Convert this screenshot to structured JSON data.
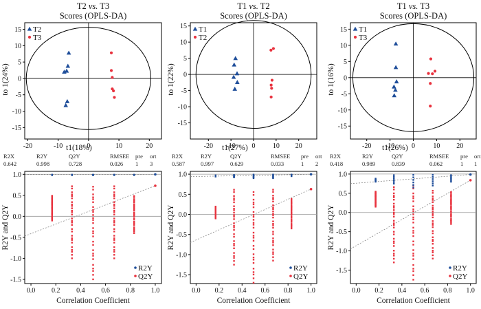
{
  "colors": {
    "group_blue": "#1f4e9a",
    "group_red": "#e8323e",
    "r2y": "#1f4e9a",
    "q2y": "#e8323e",
    "axis": "#000000",
    "refline": "#999999",
    "trend": "#888888"
  },
  "chart_data": [
    {
      "type": "scatter",
      "title_line1": "T2 vs. T3",
      "title_line2": "Scores (OPLS-DA)",
      "xlabel": "t1(18%)",
      "ylabel": "to 1(24%)",
      "xlim": [
        -21,
        24
      ],
      "ylim": [
        -18.5,
        17
      ],
      "xticks": [
        "-20",
        "-10",
        "0",
        "10",
        "20"
      ],
      "yticks": [
        "-15",
        "-10",
        "-5",
        "0",
        "5",
        "10",
        "15"
      ],
      "ellipse": {
        "rx": 20.5,
        "ry": 15.6
      },
      "legend": {
        "placement": "top-left",
        "entries": [
          "T2",
          "T3"
        ]
      },
      "series": [
        {
          "name": "T2",
          "marker": "triangle",
          "color": "#1f4e9a",
          "points": [
            [
              -6.5,
              7.8
            ],
            [
              -6.8,
              3.8
            ],
            [
              -7.2,
              2.3
            ],
            [
              -8.0,
              2.0
            ],
            [
              -7.0,
              -7.0
            ],
            [
              -7.5,
              -8.2
            ]
          ]
        },
        {
          "name": "T3",
          "marker": "circle",
          "color": "#e8323e",
          "points": [
            [
              7.5,
              7.8
            ],
            [
              7.5,
              2.4
            ],
            [
              7.8,
              0.3
            ],
            [
              7.8,
              -3.2
            ],
            [
              8.2,
              -3.8
            ],
            [
              8.5,
              -5.8
            ]
          ]
        }
      ]
    },
    {
      "type": "scatter",
      "title_line1": "T1 vs. T2",
      "title_line2": "Scores (OPLS-DA)",
      "xlabel": "t1(27%)",
      "ylabel": "to 1(22%)",
      "xlim": [
        -28,
        28
      ],
      "ylim": [
        -20,
        16
      ],
      "xticks": [
        "-20",
        "-10",
        "0",
        "10",
        "20"
      ],
      "yticks": [
        "-15",
        "-10",
        "-5",
        "0",
        "5",
        "10",
        "15"
      ],
      "ellipse": {
        "rx": 25.5,
        "ry": 16.7
      },
      "legend": {
        "placement": "top-left",
        "entries": [
          "T1",
          "T2"
        ]
      },
      "series": [
        {
          "name": "T1",
          "marker": "triangle",
          "color": "#1f4e9a",
          "points": [
            [
              -8.0,
              5.0
            ],
            [
              -8.6,
              3.0
            ],
            [
              -7.3,
              0.3
            ],
            [
              -8.8,
              -0.8
            ],
            [
              -7.2,
              -2.4
            ],
            [
              -8.3,
              -4.5
            ]
          ]
        },
        {
          "name": "T2",
          "marker": "circle",
          "color": "#e8323e",
          "points": [
            [
              8.8,
              8.0
            ],
            [
              7.7,
              7.5
            ],
            [
              8.2,
              -1.8
            ],
            [
              7.8,
              -3.3
            ],
            [
              8.0,
              -4.3
            ],
            [
              7.8,
              -7.0
            ]
          ]
        }
      ]
    },
    {
      "type": "scatter",
      "title_line1": "T1 vs. T3",
      "title_line2": "Scores (OPLS-DA)",
      "xlabel": "t1(26%)",
      "ylabel": "to 1(16%)",
      "xlim": [
        -27,
        27
      ],
      "ylim": [
        -19,
        17
      ],
      "xticks": [
        "-20",
        "-10",
        "0",
        "10",
        "20"
      ],
      "yticks": [
        "-15",
        "-10",
        "-5",
        "0",
        "5",
        "10",
        "15"
      ],
      "ellipse": {
        "rx": 26,
        "ry": 16.7
      },
      "legend": {
        "placement": "top-left",
        "entries": [
          "T1",
          "T3"
        ]
      },
      "series": [
        {
          "name": "T1",
          "marker": "triangle",
          "color": "#1f4e9a",
          "points": [
            [
              -7.5,
              10.5
            ],
            [
              -7.5,
              3.2
            ],
            [
              -7.2,
              -1.2
            ],
            [
              -8.3,
              -2.8
            ],
            [
              -7.7,
              -3.8
            ],
            [
              -8.2,
              -5.5
            ]
          ]
        },
        {
          "name": "T3",
          "marker": "circle",
          "color": "#e8323e",
          "points": [
            [
              7.5,
              5.8
            ],
            [
              6.5,
              1.3
            ],
            [
              9.3,
              2.0
            ],
            [
              8.2,
              1.2
            ],
            [
              7.3,
              -1.8
            ],
            [
              7.3,
              -8.8
            ]
          ]
        }
      ]
    },
    {
      "type": "scatter",
      "subtype": "permutation",
      "stats": {
        "labels": [
          "R2X",
          "R2Y",
          "Q2Y",
          "RMSEE",
          "pre",
          "ort"
        ],
        "values": [
          "0.642",
          "0.998",
          "0.728",
          "0.026",
          "1",
          "3"
        ]
      },
      "xlabel": "Correlation Coefficient",
      "ylabel": "R2Y and Q2Y",
      "xlim": [
        -0.05,
        1.05
      ],
      "ylim": [
        -1.6,
        1.07
      ],
      "xticks": [
        "0.0",
        "0.2",
        "0.4",
        "0.6",
        "0.8",
        "1.0"
      ],
      "yticks": [
        "-1.5",
        "-1.0",
        "-0.5",
        "0.0",
        "0.5",
        "1.0"
      ],
      "x_columns": [
        0.17,
        0.33,
        0.5,
        0.67,
        0.83
      ],
      "r2y_range": [
        [
          0.98,
          0.99
        ],
        [
          0.98,
          0.99
        ],
        [
          0.98,
          0.99
        ],
        [
          0.98,
          0.99
        ],
        [
          0.98,
          0.99
        ]
      ],
      "q2y_range": [
        [
          -0.1,
          0.5
        ],
        [
          -1.0,
          0.75
        ],
        [
          -1.5,
          0.75
        ],
        [
          -1.0,
          0.75
        ],
        [
          -0.4,
          0.5
        ]
      ],
      "r2y_original": 0.998,
      "q2y_original": 0.728,
      "r2y_intercept": 0.995,
      "q2y_intercept": -0.47,
      "legend": {
        "placement": "bottom-right",
        "entries": [
          "R2Y",
          "Q2Y"
        ]
      }
    },
    {
      "type": "scatter",
      "subtype": "permutation",
      "stats": {
        "labels": [
          "R2X",
          "R2Y",
          "Q2Y",
          "RMSEE",
          "pre",
          "ort"
        ],
        "values": [
          "0.587",
          "0.997",
          "0.629",
          "0.033",
          "1",
          "2"
        ]
      },
      "xlabel": "Correlation Coefficient",
      "ylabel": "R2Y and Q2Y",
      "xlim": [
        -0.05,
        1.05
      ],
      "ylim": [
        -1.72,
        1.07
      ],
      "xticks": [
        "0.0",
        "0.2",
        "0.4",
        "0.6",
        "0.8",
        "1.0"
      ],
      "yticks": [
        "-1.5",
        "-1.0",
        "-0.5",
        "0.0",
        "0.5",
        "1.0"
      ],
      "x_columns": [
        0.17,
        0.33,
        0.5,
        0.67,
        0.83
      ],
      "r2y_range": [
        [
          0.94,
          0.97
        ],
        [
          0.92,
          0.98
        ],
        [
          0.9,
          0.99
        ],
        [
          0.9,
          0.99
        ],
        [
          0.95,
          0.99
        ]
      ],
      "q2y_range": [
        [
          -0.1,
          0.2
        ],
        [
          -1.25,
          0.65
        ],
        [
          -1.7,
          0.6
        ],
        [
          -1.15,
          0.65
        ],
        [
          -0.35,
          0.4
        ]
      ],
      "r2y_original": 0.997,
      "q2y_original": 0.629,
      "r2y_intercept": 0.94,
      "q2y_intercept": -0.7,
      "legend": {
        "placement": "bottom-right",
        "entries": [
          "R2Y",
          "Q2Y"
        ]
      }
    },
    {
      "type": "scatter",
      "subtype": "permutation",
      "stats": {
        "labels": [
          "R2X",
          "R2Y",
          "Q2Y",
          "RMSEE",
          "pre",
          "ort"
        ],
        "values": [
          "0.418",
          "0.989",
          "0.839",
          "0.062",
          "1",
          "1"
        ]
      },
      "xlabel": "Correlation Coefficient",
      "ylabel": "R2Y and Q2Y",
      "xlim": [
        -0.05,
        1.05
      ],
      "ylim": [
        -1.85,
        1.07
      ],
      "xticks": [
        "0.0",
        "0.2",
        "0.4",
        "0.6",
        "0.8",
        "1.0"
      ],
      "yticks": [
        "-1.5",
        "-1.0",
        "-0.5",
        "0.0",
        "0.5",
        "1.0"
      ],
      "x_columns": [
        0.17,
        0.33,
        0.5,
        0.67,
        0.83
      ],
      "r2y_range": [
        [
          0.8,
          0.88
        ],
        [
          0.75,
          0.97
        ],
        [
          0.65,
          0.98
        ],
        [
          0.7,
          0.98
        ],
        [
          0.8,
          0.97
        ]
      ],
      "q2y_range": [
        [
          0.15,
          0.55
        ],
        [
          -1.3,
          0.7
        ],
        [
          -1.75,
          0.75
        ],
        [
          -1.2,
          0.6
        ],
        [
          -0.3,
          0.55
        ]
      ],
      "r2y_original": 0.989,
      "q2y_original": 0.839,
      "r2y_intercept": 0.75,
      "q2y_intercept": -0.95,
      "legend": {
        "placement": "bottom-right",
        "entries": [
          "R2Y",
          "Q2Y"
        ]
      }
    }
  ]
}
